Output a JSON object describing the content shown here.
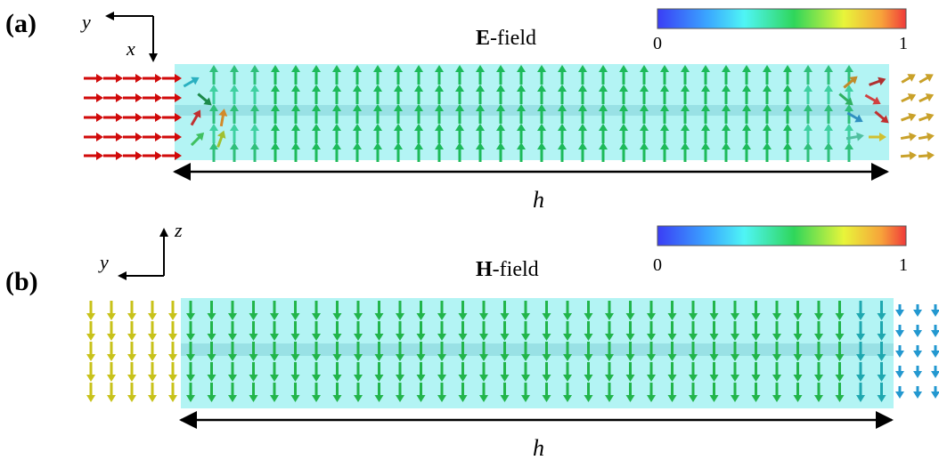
{
  "panel_a": {
    "label": "(a)",
    "title_bold": "E",
    "title_rest": "-field",
    "axis": {
      "x_letter": "x",
      "y_letter": "y"
    },
    "colorbar": {
      "min": "0",
      "max": "1"
    },
    "length_label": "h",
    "colors": {
      "waveguide": "#9cf0f0",
      "outside": "#d10a0a",
      "inside": "#1dba5a",
      "edge_right": "#c9a12a"
    }
  },
  "panel_b": {
    "label": "(b)",
    "title_bold": "H",
    "title_rest": "-field",
    "axis": {
      "z_letter": "z",
      "y_letter": "y"
    },
    "colorbar": {
      "min": "0",
      "max": "1"
    },
    "length_label": "h",
    "colors": {
      "waveguide": "#9cf0f0",
      "outside_left": "#c8c21a",
      "inside": "#22b54b",
      "outside_right": "#2398d0"
    }
  }
}
